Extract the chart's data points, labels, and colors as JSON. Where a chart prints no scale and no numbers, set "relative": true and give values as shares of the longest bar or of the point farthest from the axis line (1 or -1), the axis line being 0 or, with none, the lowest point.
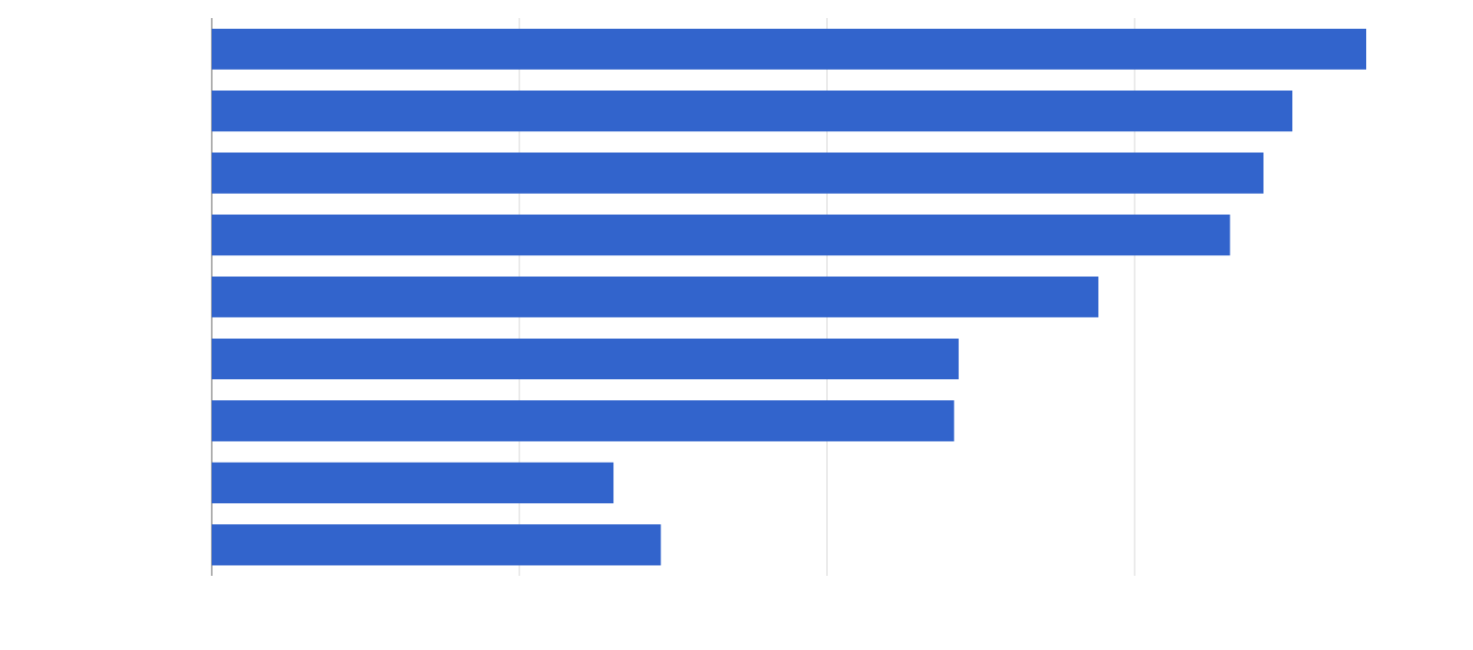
{
  "chart_data": {
    "type": "bar",
    "orientation": "horizontal",
    "relative": true,
    "categories": [
      null,
      null,
      null,
      null,
      null,
      null,
      null,
      null,
      null
    ],
    "values": [
      1,
      0.936,
      0.911,
      0.882,
      0.768,
      0.647,
      0.643,
      0.348,
      0.389
    ],
    "color": "#3264cc",
    "grid": "x"
  }
}
